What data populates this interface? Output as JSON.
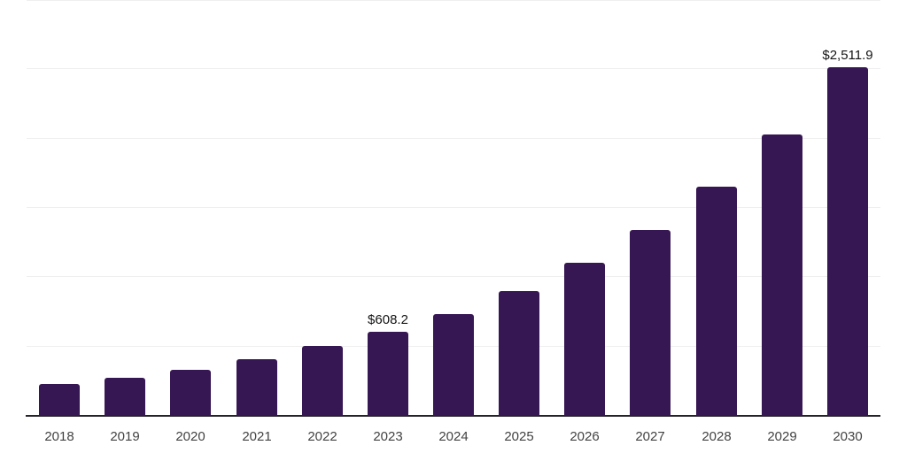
{
  "chart_data": {
    "type": "bar",
    "title": "",
    "xlabel": "",
    "ylabel": "",
    "categories": [
      "2018",
      "2019",
      "2020",
      "2021",
      "2022",
      "2023",
      "2024",
      "2025",
      "2026",
      "2027",
      "2028",
      "2029",
      "2030"
    ],
    "values": [
      228,
      272,
      330,
      409,
      503,
      608.2,
      734,
      898,
      1102,
      1343,
      1650,
      2032,
      2511.9
    ],
    "data_labels": [
      "",
      "",
      "",
      "",
      "",
      "$608.2",
      "",
      "",
      "",
      "",
      "",
      "",
      "$2,511.9"
    ],
    "ylim": [
      0,
      3000
    ],
    "gridline_step": 500,
    "grid": true,
    "legend": "none",
    "y_axis_tick_labels_visible": false,
    "colors": {
      "bar": "#371654",
      "gridline": "#efefef",
      "axis_line": "#24222a",
      "tick_label": "#424242",
      "data_label": "#141414",
      "background": "#ffffff"
    }
  }
}
